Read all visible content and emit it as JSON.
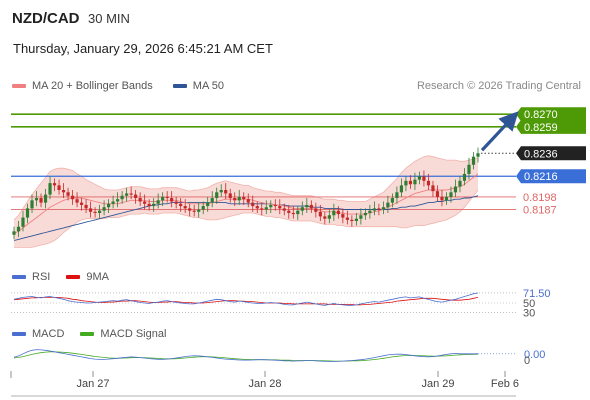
{
  "header": {
    "pair": "NZD/CAD",
    "timeframe": "30 MIN",
    "datetime": "Thursday, January 29, 2026 6:45:21 AM CET",
    "research": "Research © 2026 Trading Central"
  },
  "legends": {
    "main": [
      {
        "label": "MA 20 + Bollinger Bands",
        "color": "#f08080"
      },
      {
        "label": "MA 50",
        "color": "#2f5597"
      }
    ],
    "rsi": [
      {
        "label": "RSI",
        "color": "#4a6fd0"
      },
      {
        "label": "9MA",
        "color": "#dd1111"
      }
    ],
    "macd": [
      {
        "label": "MACD",
        "color": "#4a6fd0"
      },
      {
        "label": "MACD Signal",
        "color": "#44aa22"
      }
    ]
  },
  "colors": {
    "green_level": "#4e9a06",
    "blue_level": "#3a6fd8",
    "red_level": "#e06666",
    "current_price": "#222222",
    "arrow": "#2f5597",
    "candle_up": "#2e7d32",
    "candle_down": "#c62828",
    "band_fill": "#f7d4d0"
  },
  "chart_data": [
    {
      "type": "candlestick",
      "title": "",
      "x_ticks": [
        "Jan 27",
        "Jan 28",
        "Jan 29",
        "Feb 6"
      ],
      "ylim": [
        0.815,
        0.8285
      ],
      "levels": [
        {
          "value": 0.827,
          "label": "0.8270",
          "kind": "resistance"
        },
        {
          "value": 0.8259,
          "label": "0.8259",
          "kind": "resistance"
        },
        {
          "value": 0.8236,
          "label": "0.8236",
          "kind": "current"
        },
        {
          "value": 0.8216,
          "label": "0.8216",
          "kind": "pivot"
        },
        {
          "value": 0.8198,
          "label": "0.8198",
          "kind": "support"
        },
        {
          "value": 0.8187,
          "label": "0.8187",
          "kind": "support"
        }
      ],
      "close": [
        0.8168,
        0.8172,
        0.818,
        0.8188,
        0.8195,
        0.8197,
        0.8193,
        0.82,
        0.821,
        0.8208,
        0.8204,
        0.8202,
        0.8199,
        0.8196,
        0.8193,
        0.8191,
        0.8188,
        0.8185,
        0.8184,
        0.8186,
        0.8189,
        0.8192,
        0.8194,
        0.8196,
        0.8199,
        0.8201,
        0.82,
        0.8197,
        0.8194,
        0.8192,
        0.819,
        0.8192,
        0.8195,
        0.8198,
        0.8197,
        0.8194,
        0.8192,
        0.819,
        0.8188,
        0.8186,
        0.8185,
        0.8187,
        0.819,
        0.8193,
        0.8197,
        0.8202,
        0.8204,
        0.8201,
        0.8197,
        0.8195,
        0.8198,
        0.8196,
        0.8193,
        0.819,
        0.8188,
        0.8187,
        0.8189,
        0.8191,
        0.819,
        0.8188,
        0.8186,
        0.8184,
        0.8183,
        0.8186,
        0.8189,
        0.8191,
        0.8188,
        0.8185,
        0.8181,
        0.8179,
        0.8182,
        0.8186,
        0.8183,
        0.818,
        0.8178,
        0.8177,
        0.8179,
        0.8182,
        0.8184,
        0.8186,
        0.8188,
        0.8187,
        0.8189,
        0.8193,
        0.8197,
        0.8202,
        0.8208,
        0.8212,
        0.8209,
        0.8213,
        0.8216,
        0.8212,
        0.8208,
        0.8203,
        0.8198,
        0.8195,
        0.8198,
        0.8202,
        0.8207,
        0.8212,
        0.8218,
        0.8226,
        0.8233,
        0.8236
      ],
      "ma20": [
        0.8166,
        0.8168,
        0.8171,
        0.8174,
        0.8177,
        0.818,
        0.8183,
        0.8186,
        0.8189,
        0.8191,
        0.8193,
        0.8195,
        0.8196,
        0.8197,
        0.8197,
        0.8197,
        0.8196,
        0.8195,
        0.8194,
        0.8193,
        0.8192,
        0.8192,
        0.8192,
        0.8192,
        0.8193,
        0.8194,
        0.8195,
        0.8195,
        0.8195,
        0.8195,
        0.8194,
        0.8194,
        0.8194,
        0.8195,
        0.8195,
        0.8195,
        0.8195,
        0.8194,
        0.8193,
        0.8192,
        0.8192,
        0.8192,
        0.8192,
        0.8192,
        0.8193,
        0.8194,
        0.8195,
        0.8196,
        0.8196,
        0.8196,
        0.8196,
        0.8196,
        0.8196,
        0.8195,
        0.8194,
        0.8193,
        0.8192,
        0.8192,
        0.8191,
        0.8191,
        0.819,
        0.8189,
        0.8188,
        0.8188,
        0.8188,
        0.8188,
        0.8188,
        0.8187,
        0.8186,
        0.8185,
        0.8185,
        0.8185,
        0.8184,
        0.8184,
        0.8183,
        0.8183,
        0.8183,
        0.8183,
        0.8183,
        0.8184,
        0.8185,
        0.8186,
        0.8187,
        0.8189,
        0.8191,
        0.8193,
        0.8195,
        0.8197,
        0.8199,
        0.8201,
        0.8202,
        0.8203,
        0.8204,
        0.8204,
        0.8204,
        0.8204,
        0.8204,
        0.8205,
        0.8206,
        0.8207,
        0.8209,
        0.8212,
        0.8215,
        0.8218
      ],
      "bb_width": [
        0.0012,
        0.0014,
        0.0017,
        0.002,
        0.0023,
        0.0025,
        0.0027,
        0.0029,
        0.0031,
        0.0031,
        0.003,
        0.0028,
        0.0026,
        0.0024,
        0.0021,
        0.0019,
        0.0017,
        0.0016,
        0.0015,
        0.0014,
        0.0013,
        0.0012,
        0.0012,
        0.0012,
        0.0012,
        0.0012,
        0.0012,
        0.0012,
        0.0012,
        0.0011,
        0.0011,
        0.0011,
        0.0011,
        0.0011,
        0.0011,
        0.0011,
        0.0011,
        0.0011,
        0.0011,
        0.0011,
        0.0012,
        0.0012,
        0.0013,
        0.0014,
        0.0015,
        0.0016,
        0.0016,
        0.0016,
        0.0015,
        0.0014,
        0.0013,
        0.0012,
        0.0012,
        0.0011,
        0.0011,
        0.0011,
        0.0011,
        0.0011,
        0.0011,
        0.0011,
        0.0011,
        0.0011,
        0.0011,
        0.0011,
        0.0011,
        0.0011,
        0.0011,
        0.0011,
        0.0011,
        0.0011,
        0.0011,
        0.0011,
        0.0011,
        0.0011,
        0.0011,
        0.0011,
        0.0011,
        0.0011,
        0.0011,
        0.0012,
        0.0013,
        0.0014,
        0.0015,
        0.0017,
        0.0019,
        0.0021,
        0.0024,
        0.0026,
        0.0027,
        0.0028,
        0.0029,
        0.003,
        0.003,
        0.0029,
        0.0028,
        0.0027,
        0.0026,
        0.0025,
        0.0024,
        0.0022,
        0.002,
        0.0018,
        0.0016,
        0.0014
      ],
      "ma50": [
        0.816,
        0.8161,
        0.8162,
        0.8163,
        0.8164,
        0.8165,
        0.8166,
        0.8167,
        0.8168,
        0.8169,
        0.817,
        0.8171,
        0.8172,
        0.8173,
        0.8174,
        0.8175,
        0.8176,
        0.8177,
        0.8178,
        0.8179,
        0.818,
        0.8181,
        0.8182,
        0.8183,
        0.8184,
        0.8185,
        0.8186,
        0.8187,
        0.8188,
        0.8189,
        0.819,
        0.8191,
        0.8191,
        0.8192,
        0.8192,
        0.8193,
        0.8193,
        0.8193,
        0.8193,
        0.8193,
        0.8193,
        0.8193,
        0.8193,
        0.8193,
        0.8193,
        0.8193,
        0.8193,
        0.8193,
        0.8192,
        0.8192,
        0.8192,
        0.8192,
        0.8192,
        0.8192,
        0.8192,
        0.8192,
        0.8192,
        0.8192,
        0.8191,
        0.8191,
        0.8191,
        0.819,
        0.819,
        0.819,
        0.819,
        0.819,
        0.8189,
        0.8189,
        0.8189,
        0.8188,
        0.8188,
        0.8188,
        0.8188,
        0.8187,
        0.8187,
        0.8187,
        0.8187,
        0.8187,
        0.8187,
        0.8187,
        0.8187,
        0.8187,
        0.8187,
        0.8187,
        0.8188,
        0.8188,
        0.8189,
        0.8189,
        0.819,
        0.819,
        0.8191,
        0.8192,
        0.8193,
        0.8193,
        0.8194,
        0.8194,
        0.8195,
        0.8195,
        0.8196,
        0.8196,
        0.8197,
        0.8197,
        0.8198,
        0.8199
      ]
    },
    {
      "type": "line",
      "title": "RSI",
      "ylim": [
        20,
        80
      ],
      "tick_labels": [
        "71.50",
        "50",
        "30"
      ],
      "rsi": [
        58,
        60,
        62,
        63,
        64,
        62,
        61,
        63,
        64,
        62,
        60,
        58,
        55,
        53,
        52,
        51,
        50,
        50,
        51,
        52,
        53,
        54,
        55,
        54,
        56,
        57,
        55,
        53,
        51,
        50,
        49,
        51,
        52,
        54,
        55,
        53,
        51,
        50,
        49,
        48,
        48,
        50,
        52,
        54,
        56,
        58,
        57,
        55,
        53,
        52,
        54,
        53,
        51,
        50,
        49,
        49,
        50,
        51,
        50,
        49,
        47,
        46,
        46,
        48,
        50,
        52,
        50,
        48,
        46,
        45,
        47,
        49,
        47,
        46,
        45,
        45,
        46,
        48,
        50,
        52,
        53,
        52,
        54,
        56,
        58,
        60,
        62,
        63,
        61,
        62,
        63,
        60,
        58,
        55,
        53,
        52,
        54,
        56,
        58,
        61,
        64,
        67,
        70,
        71.5
      ],
      "ma9": [
        57,
        58,
        59,
        60,
        61,
        61,
        62,
        62,
        62,
        62,
        62,
        61,
        60,
        58,
        57,
        55,
        54,
        53,
        52,
        51,
        51,
        52,
        52,
        53,
        54,
        54,
        55,
        55,
        54,
        53,
        52,
        51,
        51,
        52,
        52,
        53,
        53,
        52,
        51,
        51,
        50,
        50,
        50,
        51,
        52,
        53,
        54,
        55,
        55,
        55,
        54,
        54,
        53,
        53,
        52,
        51,
        50,
        50,
        50,
        50,
        49,
        49,
        48,
        48,
        48,
        48,
        48,
        48,
        48,
        48,
        47,
        47,
        47,
        47,
        47,
        47,
        46,
        46,
        47,
        47,
        48,
        49,
        50,
        51,
        52,
        54,
        55,
        56,
        57,
        58,
        59,
        60,
        60,
        60,
        59,
        58,
        57,
        56,
        56,
        56,
        57,
        58,
        60,
        62
      ]
    },
    {
      "type": "line",
      "title": "MACD",
      "ylim": [
        -1,
        1
      ],
      "tick_labels": [
        "0.00",
        "0"
      ],
      "macd": [
        0.05,
        0.15,
        0.3,
        0.45,
        0.55,
        0.6,
        0.58,
        0.55,
        0.5,
        0.44,
        0.38,
        0.32,
        0.26,
        0.2,
        0.14,
        0.08,
        0.02,
        -0.04,
        -0.08,
        -0.1,
        -0.1,
        -0.08,
        -0.05,
        -0.02,
        0.02,
        0.05,
        0.08,
        0.06,
        0.03,
        0.0,
        -0.04,
        -0.07,
        -0.09,
        -0.1,
        -0.08,
        -0.04,
        0.0,
        0.05,
        0.1,
        0.14,
        0.16,
        0.15,
        0.12,
        0.08,
        0.04,
        0.0,
        -0.04,
        -0.08,
        -0.1,
        -0.12,
        -0.14,
        -0.15,
        -0.15,
        -0.14,
        -0.12,
        -0.12,
        -0.13,
        -0.14,
        -0.16,
        -0.18,
        -0.2,
        -0.21,
        -0.22,
        -0.21,
        -0.2,
        -0.18,
        -0.18,
        -0.2,
        -0.22,
        -0.24,
        -0.25,
        -0.25,
        -0.24,
        -0.22,
        -0.2,
        -0.18,
        -0.15,
        -0.12,
        -0.08,
        -0.03,
        0.03,
        0.1,
        0.16,
        0.22,
        0.26,
        0.28,
        0.27,
        0.24,
        0.2,
        0.16,
        0.12,
        0.1,
        0.08,
        0.1,
        0.14,
        0.2,
        0.26,
        0.3,
        0.33,
        0.3,
        0.3,
        0.3,
        0.3,
        0.3
      ],
      "signal": [
        0.0,
        0.04,
        0.1,
        0.18,
        0.26,
        0.33,
        0.38,
        0.42,
        0.44,
        0.44,
        0.43,
        0.41,
        0.38,
        0.34,
        0.3,
        0.26,
        0.21,
        0.16,
        0.11,
        0.07,
        0.04,
        0.01,
        -0.01,
        -0.02,
        -0.01,
        0.0,
        0.02,
        0.03,
        0.03,
        0.02,
        0.01,
        -0.01,
        -0.03,
        -0.05,
        -0.06,
        -0.06,
        -0.05,
        -0.03,
        0.0,
        0.03,
        0.06,
        0.08,
        0.09,
        0.09,
        0.08,
        0.06,
        0.04,
        0.01,
        -0.02,
        -0.04,
        -0.07,
        -0.09,
        -0.1,
        -0.11,
        -0.12,
        -0.12,
        -0.12,
        -0.13,
        -0.13,
        -0.14,
        -0.15,
        -0.16,
        -0.17,
        -0.18,
        -0.18,
        -0.18,
        -0.18,
        -0.19,
        -0.19,
        -0.2,
        -0.21,
        -0.22,
        -0.22,
        -0.22,
        -0.22,
        -0.21,
        -0.2,
        -0.19,
        -0.17,
        -0.14,
        -0.11,
        -0.07,
        -0.02,
        0.03,
        0.08,
        0.12,
        0.15,
        0.17,
        0.18,
        0.18,
        0.17,
        0.16,
        0.14,
        0.13,
        0.13,
        0.14,
        0.16,
        0.18,
        0.21,
        0.23,
        0.24,
        0.25,
        0.26,
        0.27
      ]
    }
  ]
}
